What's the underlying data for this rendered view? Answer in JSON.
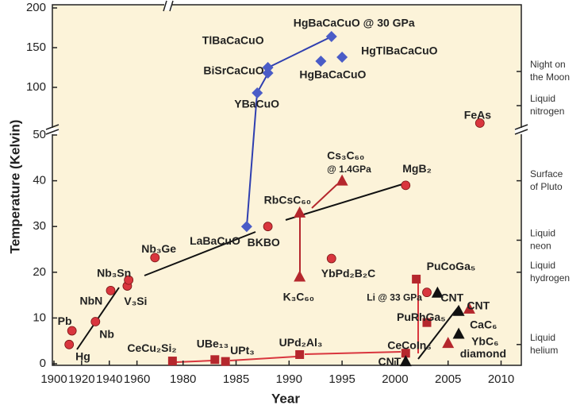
{
  "chart_data": {
    "type": "scatter",
    "xlabel": "Year",
    "ylabel": "Temperature (Kelvin)",
    "xlim": [
      1900,
      2010
    ],
    "x_break": 1978,
    "xticks": [
      1900,
      1920,
      1940,
      1960,
      1980,
      1985,
      1990,
      1995,
      2000,
      2005,
      2010
    ],
    "ylim": [
      0,
      200
    ],
    "y_break": 50,
    "yticks": [
      0,
      10,
      20,
      30,
      40,
      50,
      100,
      150,
      200
    ],
    "series": [
      {
        "marker": "circle",
        "color": "#d9363e",
        "x": [
          1911,
          1913,
          1930,
          1941,
          1953,
          1954,
          1973,
          1988,
          1994,
          2001,
          2003,
          2008
        ],
        "values": [
          4.2,
          7.2,
          9.2,
          16,
          17,
          18.3,
          23.2,
          30,
          23,
          39,
          15.6,
          55
        ],
        "labels": [
          "Hg",
          "Pb",
          "Nb",
          "NbN",
          "V₃Si",
          "Nb₃Sn",
          "Nb₃Ge",
          "BKBO",
          "YbPd₂B₂C",
          "MgB₂",
          "Li @ 33 GPa",
          "FeAs"
        ]
      },
      {
        "marker": "square",
        "color": "#b5272d",
        "x": [
          1979,
          1983,
          1984,
          1991,
          2001,
          2003,
          2002
        ],
        "values": [
          0.6,
          0.9,
          0.5,
          2,
          2.3,
          9,
          18.5
        ],
        "labels": [
          "CeCu₂Si₂",
          "UBe₁₃",
          "UPt₃",
          "UPd₂Al₃",
          "CeCoIn₅",
          "PuRhGa₅",
          "PuCoGa₅"
        ]
      },
      {
        "marker": "diamond",
        "color": "#4a5cc7",
        "x": [
          1986,
          1987,
          1988,
          1988,
          1993,
          1995,
          1994
        ],
        "values": [
          30,
          93,
          118,
          125,
          133,
          138,
          164
        ],
        "labels": [
          "LaBaCuO",
          "YBaCuO",
          "BiSrCaCuO",
          "TlBaCaCuO",
          "HgBaCaCuO",
          "HgTlBaCaCuO",
          "HgBaCaCuO @ 30 GPa"
        ]
      },
      {
        "marker": "triangle",
        "color": "#b5272d",
        "x": [
          1991,
          1991,
          1995,
          2007,
          2005
        ],
        "values": [
          19,
          33,
          40,
          12,
          4.5
        ],
        "labels": [
          "K₃C₆₀",
          "RbCsC₆₀",
          [
            "Cs₃C₆₀",
            "@ 1.4GPa"
          ],
          "CNT",
          "diamond"
        ]
      },
      {
        "marker": "triangle",
        "color": "#111111",
        "x": [
          2001,
          2004,
          2006,
          2006
        ],
        "values": [
          0.5,
          15.5,
          11.5,
          6.5
        ],
        "labels": [
          "CNT",
          "CNT",
          "CaC₆",
          "YbC₆"
        ]
      }
    ],
    "annotations": [
      {
        "label": [
          "Night on",
          "the Moon"
        ],
        "value": 120
      },
      {
        "label": [
          "Liquid",
          "nitrogen"
        ],
        "value": 77
      },
      {
        "label": [
          "Surface",
          "of Pluto"
        ],
        "value": 40
      },
      {
        "label": [
          "Liquid",
          "neon"
        ],
        "value": 27
      },
      {
        "label": [
          "Liquid",
          "hydrogen"
        ],
        "value": 20
      },
      {
        "label": [
          "Liquid",
          "helium"
        ],
        "value": 4.2
      }
    ]
  }
}
